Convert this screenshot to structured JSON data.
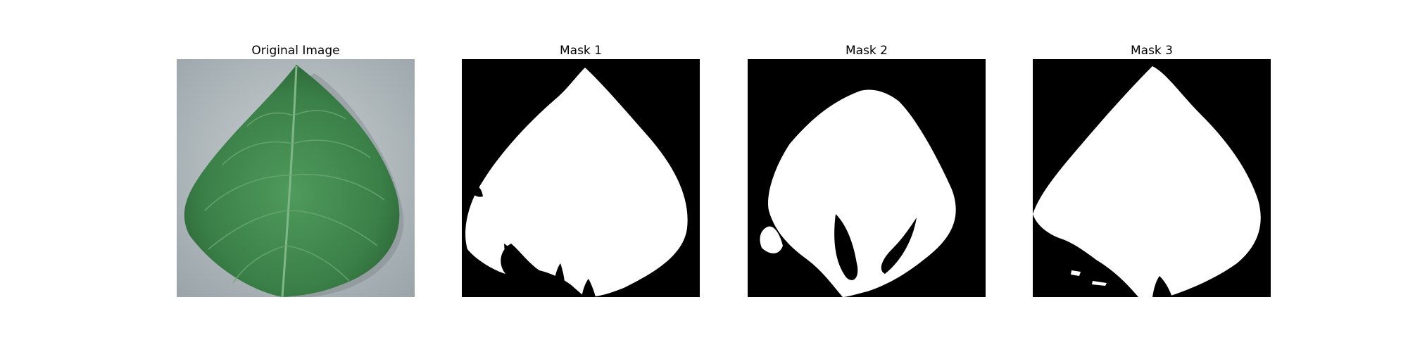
{
  "figure": {
    "panels": [
      {
        "id": "original",
        "title": "Original Image",
        "icon": "leaf-photo"
      },
      {
        "id": "mask-1",
        "title": "Mask 1",
        "icon": "binary-mask",
        "colors": {
          "background": "#000000",
          "foreground": "#ffffff"
        }
      },
      {
        "id": "mask-2",
        "title": "Mask 2",
        "icon": "binary-mask",
        "colors": {
          "background": "#000000",
          "foreground": "#ffffff"
        }
      },
      {
        "id": "mask-3",
        "title": "Mask 3",
        "icon": "binary-mask",
        "colors": {
          "background": "#000000",
          "foreground": "#ffffff"
        }
      }
    ],
    "colors": {
      "leaf_dark": "#2f6b3a",
      "leaf_mid": "#3f8a4c",
      "leaf_light": "#5fa36a",
      "backdrop": "#b6c0c4"
    }
  }
}
